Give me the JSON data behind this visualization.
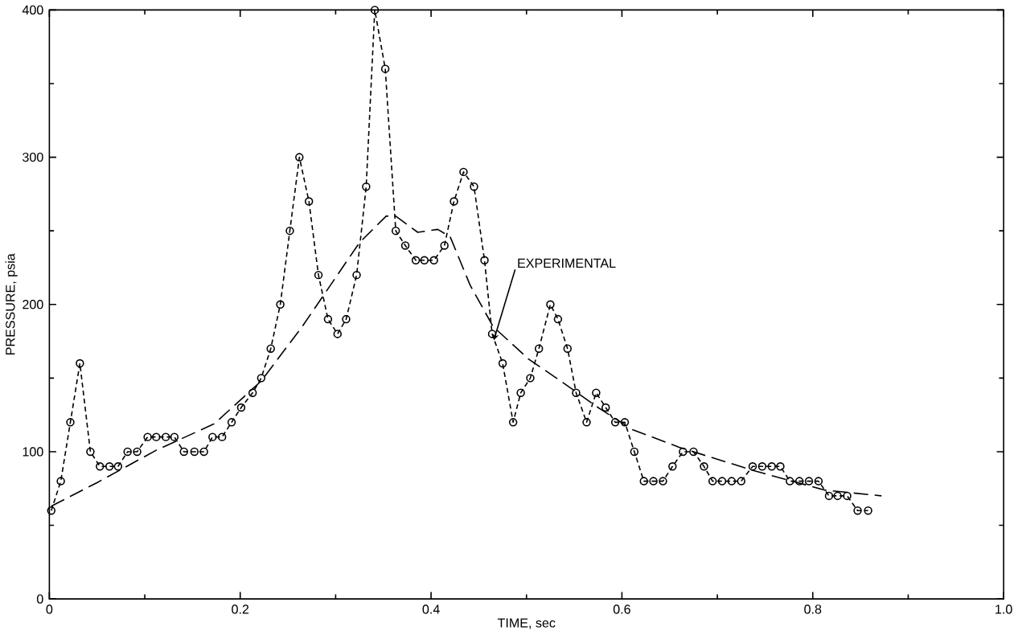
{
  "chart_data": {
    "type": "line",
    "xlabel": "TIME, sec",
    "ylabel": "PRESSURE, psia",
    "xlim": [
      0,
      1.0
    ],
    "ylim": [
      0,
      400
    ],
    "xticks": [
      0,
      {
        "value": 0.2,
        "label": "0.2"
      },
      {
        "value": 0.4,
        "label": "0.4"
      },
      {
        "value": 0.6,
        "label": "0.6"
      },
      {
        "value": 0.8,
        "label": "0.8"
      },
      {
        "value": 1.0,
        "label": "1.0"
      }
    ],
    "yticks": [
      0,
      100,
      200,
      300,
      400
    ],
    "grid": false,
    "legend": false,
    "series": [
      {
        "name": "EXPERIMENTAL",
        "color": "#000000",
        "marker": "circle",
        "line_style": "dotted",
        "x": [
          0.002,
          0.012,
          0.022,
          0.032,
          0.043,
          0.053,
          0.063,
          0.072,
          0.082,
          0.092,
          0.103,
          0.112,
          0.122,
          0.131,
          0.141,
          0.152,
          0.162,
          0.171,
          0.181,
          0.191,
          0.201,
          0.213,
          0.222,
          0.232,
          0.242,
          0.252,
          0.262,
          0.272,
          0.282,
          0.292,
          0.302,
          0.311,
          0.322,
          0.332,
          0.341,
          0.352,
          0.363,
          0.373,
          0.384,
          0.393,
          0.403,
          0.414,
          0.424,
          0.434,
          0.445,
          0.456,
          0.464,
          0.475,
          0.486,
          0.494,
          0.504,
          0.513,
          0.525,
          0.533,
          0.543,
          0.552,
          0.563,
          0.573,
          0.583,
          0.593,
          0.603,
          0.613,
          0.623,
          0.633,
          0.643,
          0.653,
          0.664,
          0.675,
          0.686,
          0.695,
          0.705,
          0.715,
          0.725,
          0.737,
          0.747,
          0.757,
          0.766,
          0.776,
          0.786,
          0.796,
          0.806,
          0.817,
          0.826,
          0.836,
          0.847,
          0.858
        ],
        "values": [
          60,
          80,
          120,
          160,
          100,
          90,
          90,
          90,
          100,
          100,
          110,
          110,
          110,
          110,
          100,
          100,
          100,
          110,
          110,
          120,
          130,
          140,
          150,
          170,
          200,
          250,
          300,
          270,
          220,
          190,
          180,
          190,
          220,
          280,
          400,
          360,
          250,
          240,
          230,
          230,
          230,
          240,
          270,
          290,
          280,
          230,
          180,
          160,
          120,
          140,
          150,
          170,
          200,
          190,
          170,
          140,
          120,
          140,
          130,
          120,
          120,
          100,
          80,
          80,
          80,
          90,
          100,
          100,
          90,
          80,
          80,
          80,
          80,
          90,
          90,
          90,
          90,
          80,
          80,
          80,
          80,
          70,
          70,
          70,
          60,
          60
        ]
      },
      {
        "color": "#000000",
        "marker": "none",
        "line_style": "dashed",
        "x": [
          0.002,
          0.05,
          0.112,
          0.173,
          0.222,
          0.265,
          0.325,
          0.353,
          0.363,
          0.386,
          0.407,
          0.42,
          0.441,
          0.465,
          0.502,
          0.538,
          0.575,
          0.611,
          0.66,
          0.739,
          0.812,
          0.872
        ],
        "values": [
          63,
          79,
          101,
          119,
          148,
          185,
          242,
          260,
          260,
          249,
          251,
          246,
          213,
          185,
          163,
          147,
          130,
          115,
          103,
          87,
          74,
          70
        ]
      }
    ]
  }
}
